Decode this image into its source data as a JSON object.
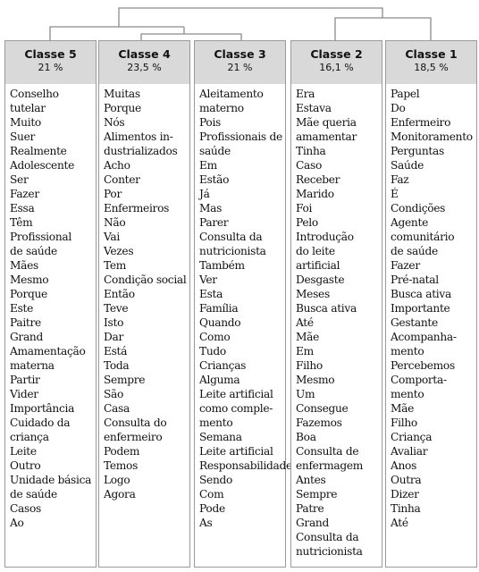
{
  "classes": [
    {
      "name": "Classe 5",
      "percent": "21 %",
      "words": [
        "Conselho",
        "tutelar",
        "Muito",
        "Suer",
        "Realmente",
        "Adolescente",
        "Ser",
        "Fazer",
        "Essa",
        "Têm",
        "Profissional",
        "de saúde",
        "Mães",
        "Mesmo",
        "Porque",
        "Este",
        "Paitre",
        "Grand",
        "Amamentação",
        "materna",
        "Partir",
        "Vider",
        "Importância",
        "Cuidado da",
        "criança",
        "Leite",
        "Outro",
        "Unidade básica",
        "de saúde",
        "Casos",
        "Ao"
      ]
    },
    {
      "name": "Classe 4",
      "percent": "23,5 %",
      "words": [
        "Muitas",
        "Porque",
        "Nós",
        "Alimentos in-",
        "dustrializados",
        "Acho",
        "Conter",
        "Por",
        "Enfermeiros",
        "Não",
        "Vai",
        "Vezes",
        "Tem",
        "Condição social",
        "Então",
        "Teve",
        "Isto",
        "Dar",
        "Está",
        "Toda",
        "Sempre",
        "São",
        "Casa",
        "Consulta do",
        "enfermeiro",
        "Podem",
        "Temos",
        "Logo",
        "Agora"
      ]
    },
    {
      "name": "Classe 3",
      "percent": "21 %",
      "words": [
        "Aleitamento",
        "materno",
        "Pois",
        "Profissionais de",
        "saúde",
        "Em",
        "Estão",
        "Já",
        "Mas",
        "Parer",
        "Consulta da",
        "nutricionista",
        "Também",
        "Ver",
        "Esta",
        "Família",
        "Quando",
        "Como",
        "Tudo",
        "Crianças",
        "Alguma",
        "Leite artificial",
        "como comple-",
        "mento",
        "Semana",
        "Leite artificial",
        "Responsabilidade",
        "Sendo",
        "Com",
        "Pode",
        "As"
      ]
    },
    {
      "name": "Classe 2",
      "percent": "16,1 %",
      "words": [
        "Era",
        "Estava",
        "Mãe queria",
        "amamentar",
        "Tinha",
        "Caso",
        "Receber",
        "Marido",
        "Foi",
        "Pelo",
        "Introdução",
        "do leite",
        "artificial",
        "Desgaste",
        "Meses",
        "Busca ativa",
        "Até",
        "Mãe",
        "Em",
        "Filho",
        "Mesmo",
        "Um",
        "Consegue",
        "Fazemos",
        "Boa",
        "Consulta de",
        "enfermagem",
        "Antes",
        "Sempre",
        "Patre",
        "Grand",
        "Consulta da",
        "nutricionista"
      ]
    },
    {
      "name": "Classe 1",
      "percent": "18,5 %",
      "words": [
        "Papel",
        "Do",
        "Enfermeiro",
        "Monitoramento",
        "Perguntas",
        "Saúde",
        "Faz",
        "É",
        "Condições",
        "Agente",
        "comunitário",
        "de saúde",
        "Fazer",
        "Pré-natal",
        "Busca ativa",
        "Importante",
        "Gestante",
        "Acompanha-",
        "mento",
        "Percebemos",
        "Comporta-",
        "mento",
        "Mãe",
        "Filho",
        "Criança",
        "Avaliar",
        "Anos",
        "Outra",
        "Dizer",
        "Tinha",
        "Até"
      ]
    }
  ],
  "colors": {
    "header_bg": "#d9d9d9",
    "border": "#9a9a9a",
    "tree_line": "#8a8a8a"
  }
}
